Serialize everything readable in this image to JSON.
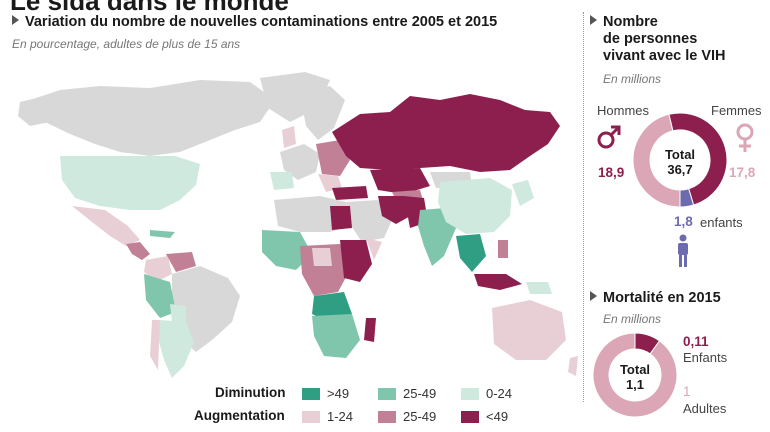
{
  "header": {
    "big_title": "Le sida dans le monde"
  },
  "map_section": {
    "title": "Variation du nombre de nouvelles contaminations entre 2005 et 2015",
    "subtitle": "En pourcentage, adultes de plus de 15 ans"
  },
  "legend": {
    "decrease_label": "Diminution",
    "increase_label": "Augmentation",
    "decrease": [
      {
        "label": ">49",
        "color": "#2f9e82"
      },
      {
        "label": "25-49",
        "color": "#7fc6ad"
      },
      {
        "label": "0-24",
        "color": "#cfe9de"
      }
    ],
    "increase": [
      {
        "label": "1-24",
        "color": "#e8cfd6"
      },
      {
        "label": "25-49",
        "color": "#c28096"
      },
      {
        "label": "<49",
        "color": "#8d1f4e"
      }
    ],
    "nodata_color": "#d8d8d8"
  },
  "hiv_section": {
    "title_line1": "Nombre",
    "title_line2": "de personnes",
    "title_line3": "vivant avec le VIH",
    "subtitle": "En millions",
    "men_label": "Hommes",
    "women_label": "Femmes",
    "men_value": "18,9",
    "women_value": "17,8",
    "total_label": "Total",
    "total_value": "36,7",
    "children_value": "1,8",
    "children_label": "enfants"
  },
  "mortality_section": {
    "title": "Mortalité en 2015",
    "subtitle": "En millions",
    "total_label": "Total",
    "total_value": "1,1",
    "children_value": "0,11",
    "children_label": "Enfants",
    "adults_value": "1",
    "adults_label": "Adultes"
  },
  "chart_data": [
    {
      "type": "pie",
      "title": "Nombre de personnes vivant avec le VIH",
      "unit": "En millions",
      "categories": [
        "Hommes",
        "Femmes",
        "enfants"
      ],
      "values": [
        18.9,
        17.8,
        1.8
      ],
      "total": 36.7,
      "colors": [
        "#8d1f4e",
        "#dba6b6",
        "#6d6bb0"
      ]
    },
    {
      "type": "pie",
      "title": "Mortalité en 2015",
      "unit": "En millions",
      "categories": [
        "Enfants",
        "Adultes"
      ],
      "values": [
        0.11,
        1
      ],
      "total": 1.1,
      "colors": [
        "#8d1f4e",
        "#dba6b6"
      ]
    }
  ]
}
